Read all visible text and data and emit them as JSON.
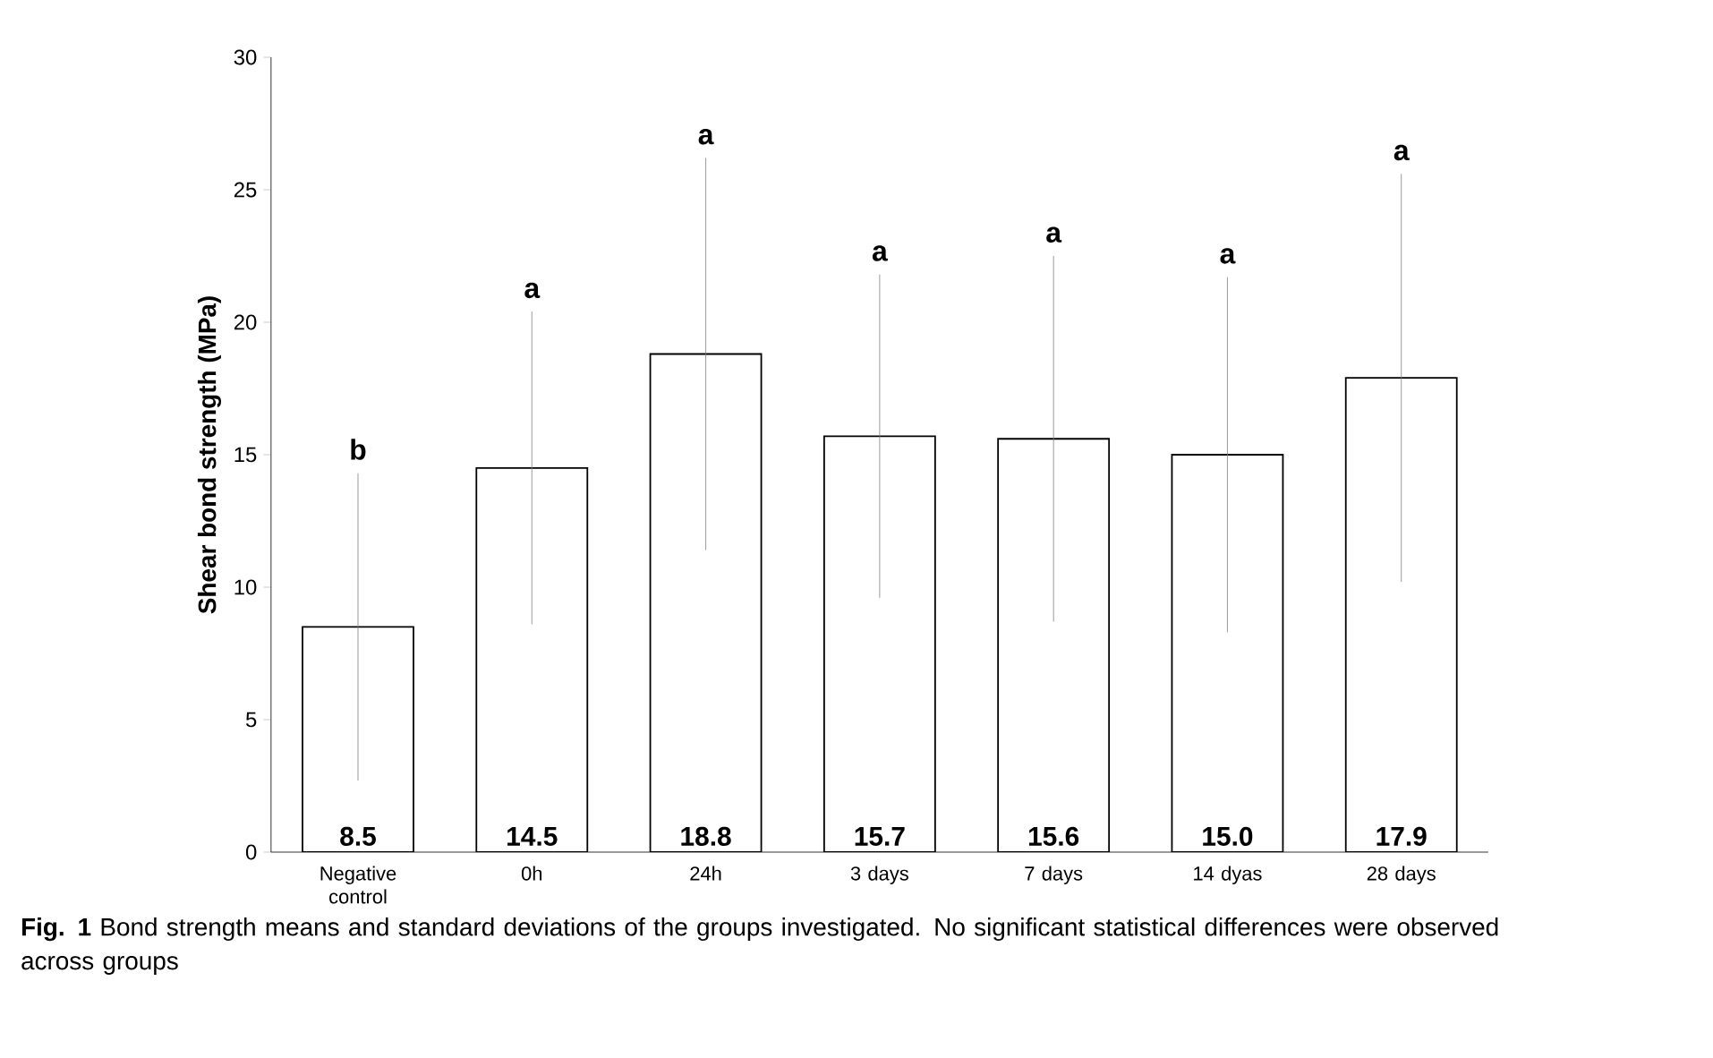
{
  "chart_data": {
    "type": "bar",
    "ylabel": "Shear bond strength (MPa)",
    "categories": [
      "Negative control",
      "0h",
      "24h",
      "3 days",
      "7 days",
      "14 dyas",
      "28 days"
    ],
    "values": [
      8.5,
      14.5,
      18.8,
      15.7,
      15.6,
      15.0,
      17.9
    ],
    "value_labels": [
      "8.5",
      "14.5",
      "18.8",
      "15.7",
      "15.6",
      "15.0",
      "17.9"
    ],
    "errors": [
      5.8,
      5.9,
      7.4,
      6.1,
      6.9,
      6.7,
      7.7
    ],
    "color": "#ffffff",
    "ylim": [
      0,
      30
    ],
    "yticks": [
      0,
      5,
      10,
      15,
      20,
      25,
      30
    ],
    "annotations": [
      {
        "text": "b",
        "x": "Negative control",
        "y": 14.3
      },
      {
        "text": "a",
        "x": "0h",
        "y": 20.4
      },
      {
        "text": "a",
        "x": "24h",
        "y": 26.2
      },
      {
        "text": "a",
        "x": "3 days",
        "y": 21.8
      },
      {
        "text": "a",
        "x": "7 days",
        "y": 22.5
      },
      {
        "text": "a",
        "x": "14 dyas",
        "y": 21.7
      },
      {
        "text": "a",
        "x": "28 days",
        "y": 25.6
      },
      "**Fig. 1** Bond strength means and standard deviations of the groups investigated. No significant statistical differences were observed across groups"
    ]
  }
}
